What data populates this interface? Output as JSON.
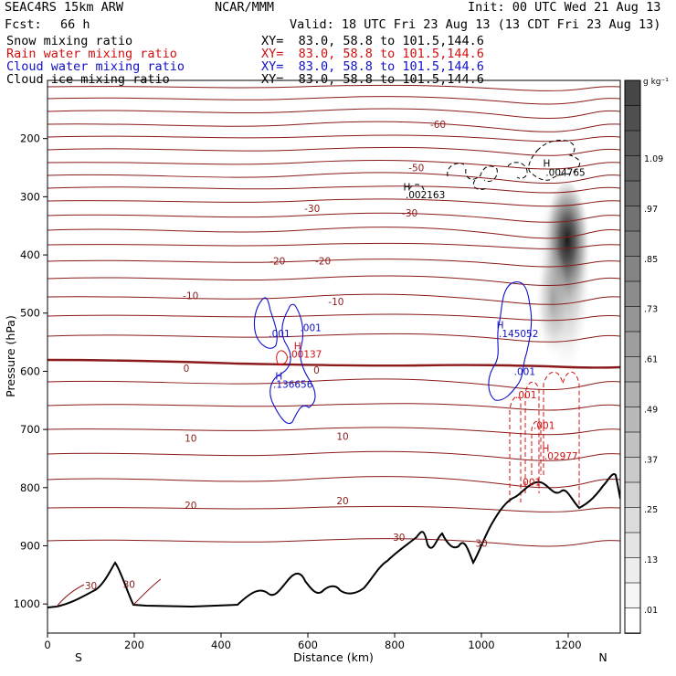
{
  "header": {
    "model": "SEAC4RS 15km ARW",
    "org": "NCAR/MMM",
    "init": "Init: 00 UTC Wed 21 Aug 13",
    "fcst_label": "Fcst:",
    "fcst_value": "66 h",
    "valid": "Valid: 18 UTC Fri 23 Aug 13 (13 CDT Fri 23 Aug 13)",
    "lines": [
      {
        "field": "Snow mixing ratio",
        "xy": "XY=  83.0, 58.8 to 101.5,144.6",
        "color": "#000000"
      },
      {
        "field": "Rain water mixing ratio",
        "xy": "XY=  83.0, 58.8 to 101.5,144.6",
        "color": "#d01010"
      },
      {
        "field": "Cloud water mixing ratio",
        "xy": "XY=  83.0, 58.8 to 101.5,144.6",
        "color": "#1010c8"
      },
      {
        "field": "Cloud ice mixing ratio",
        "xy": "XY=  83.0, 58.8 to 101.5,144.6",
        "color": "#000000"
      }
    ]
  },
  "colorbar": {
    "unit": "g kg⁻¹",
    "labels": [
      "1.09",
      ".97",
      ".85",
      ".73",
      ".61",
      ".49",
      ".37",
      ".25",
      ".13",
      ".01"
    ],
    "levels": [
      0.01,
      0.13,
      0.25,
      0.37,
      0.49,
      0.61,
      0.73,
      0.85,
      0.97,
      1.09
    ]
  },
  "chart_data": {
    "type": "cross-section",
    "xlabel": "Distance (km)",
    "ylabel": "Pressure (hPa)",
    "xlim": [
      0,
      1320
    ],
    "ylim": [
      1050,
      100
    ],
    "xticks": [
      0,
      200,
      400,
      600,
      800,
      1000,
      1200
    ],
    "yticks": [
      200,
      300,
      400,
      500,
      600,
      700,
      800,
      900,
      1000
    ],
    "x_end_labels": {
      "left": "S",
      "right": "N"
    },
    "temperature_labels": [
      {
        "text": "-60",
        "x": 900,
        "p": 175
      },
      {
        "text": "-50",
        "x": 850,
        "p": 250
      },
      {
        "text": "-30",
        "x": 610,
        "p": 320
      },
      {
        "text": "-30",
        "x": 835,
        "p": 328
      },
      {
        "text": "-20",
        "x": 530,
        "p": 410
      },
      {
        "text": "-20",
        "x": 635,
        "p": 410
      },
      {
        "text": "-10",
        "x": 330,
        "p": 470
      },
      {
        "text": "-10",
        "x": 665,
        "p": 480
      },
      {
        "text": "0",
        "x": 320,
        "p": 595
      },
      {
        "text": "0",
        "x": 620,
        "p": 598
      },
      {
        "text": "10",
        "x": 330,
        "p": 715
      },
      {
        "text": "10",
        "x": 680,
        "p": 712
      },
      {
        "text": "20",
        "x": 330,
        "p": 830
      },
      {
        "text": "20",
        "x": 680,
        "p": 822
      },
      {
        "text": "30",
        "x": 810,
        "p": 885
      },
      {
        "text": "30",
        "x": 1000,
        "p": 895
      },
      {
        "text": "30",
        "x": 100,
        "p": 968
      },
      {
        "text": "30",
        "x": 188,
        "p": 966
      }
    ],
    "annotations": [
      {
        "text": "H",
        "x": 820,
        "p": 283,
        "color": "#000000"
      },
      {
        "text": ".002163",
        "x": 825,
        "p": 296,
        "color": "#000000"
      },
      {
        "text": "H",
        "x": 1142,
        "p": 242,
        "color": "#000000"
      },
      {
        "text": ".004765",
        "x": 1148,
        "p": 258,
        "color": "#000000"
      },
      {
        "text": ".001",
        "x": 510,
        "p": 535,
        "color": "#1010c8"
      },
      {
        "text": ".001",
        "x": 582,
        "p": 525,
        "color": "#1010c8"
      },
      {
        "text": "H",
        "x": 1035,
        "p": 520,
        "color": "#1010c8"
      },
      {
        "text": ".145052",
        "x": 1040,
        "p": 535,
        "color": "#1010c8"
      },
      {
        "text": ".001",
        "x": 1075,
        "p": 600,
        "color": "#1010c8"
      },
      {
        "text": "H",
        "x": 568,
        "p": 556,
        "color": "#d01010"
      },
      {
        "text": ".00137",
        "x": 555,
        "p": 570,
        "color": "#d01010"
      },
      {
        "text": "H",
        "x": 525,
        "p": 608,
        "color": "#1010c8"
      },
      {
        "text": ".136656",
        "x": 520,
        "p": 622,
        "color": "#1010c8"
      },
      {
        "text": ".001",
        "x": 1078,
        "p": 640,
        "color": "#d01010"
      },
      {
        "text": ".001",
        "x": 1120,
        "p": 693,
        "color": "#d01010"
      },
      {
        "text": "H",
        "x": 1140,
        "p": 732,
        "color": "#d01010"
      },
      {
        "text": ".02977",
        "x": 1145,
        "p": 745,
        "color": "#d01010"
      },
      {
        "text": ".001",
        "x": 1088,
        "p": 790,
        "color": "#d01010"
      }
    ]
  }
}
